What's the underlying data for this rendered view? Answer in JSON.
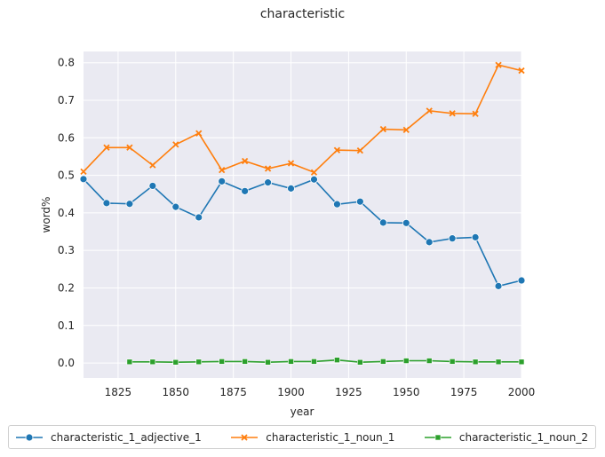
{
  "chart_data": {
    "type": "line",
    "title": "characteristic",
    "xlabel": "year",
    "ylabel": "word%",
    "xlim": [
      1810,
      2000
    ],
    "ylim": [
      -0.04,
      0.83
    ],
    "xticks": [
      1825,
      1850,
      1875,
      1900,
      1925,
      1950,
      1975,
      2000
    ],
    "yticks": [
      0.0,
      0.1,
      0.2,
      0.3,
      0.4,
      0.5,
      0.6,
      0.7,
      0.8
    ],
    "grid": true,
    "legend_position": "bottom",
    "series": [
      {
        "name": "characteristic_1_adjective_1",
        "color": "#1f77b4",
        "marker": "circle",
        "x": [
          1810,
          1820,
          1830,
          1840,
          1850,
          1860,
          1870,
          1880,
          1890,
          1900,
          1910,
          1920,
          1930,
          1940,
          1950,
          1960,
          1970,
          1980,
          1990,
          2000
        ],
        "y": [
          0.49,
          0.426,
          0.424,
          0.472,
          0.416,
          0.388,
          0.484,
          0.458,
          0.481,
          0.465,
          0.489,
          0.423,
          0.43,
          0.374,
          0.373,
          0.322,
          0.332,
          0.335,
          0.205,
          0.22
        ]
      },
      {
        "name": "characteristic_1_noun_1",
        "color": "#ff7f0e",
        "marker": "x",
        "x": [
          1810,
          1820,
          1830,
          1840,
          1850,
          1860,
          1870,
          1880,
          1890,
          1900,
          1910,
          1920,
          1930,
          1940,
          1950,
          1960,
          1970,
          1980,
          1990,
          2000
        ],
        "y": [
          0.51,
          0.574,
          0.574,
          0.527,
          0.582,
          0.612,
          0.514,
          0.538,
          0.518,
          0.532,
          0.508,
          0.567,
          0.566,
          0.623,
          0.621,
          0.672,
          0.665,
          0.664,
          0.794,
          0.779
        ]
      },
      {
        "name": "characteristic_1_noun_2",
        "color": "#2ca02c",
        "marker": "square",
        "x": [
          1830,
          1840,
          1850,
          1860,
          1870,
          1880,
          1890,
          1900,
          1910,
          1920,
          1930,
          1940,
          1950,
          1960,
          1970,
          1980,
          1990,
          2000
        ],
        "y": [
          0.003,
          0.003,
          0.002,
          0.003,
          0.004,
          0.004,
          0.002,
          0.004,
          0.004,
          0.008,
          0.002,
          0.004,
          0.006,
          0.006,
          0.004,
          0.003,
          0.003,
          0.003
        ]
      }
    ]
  }
}
